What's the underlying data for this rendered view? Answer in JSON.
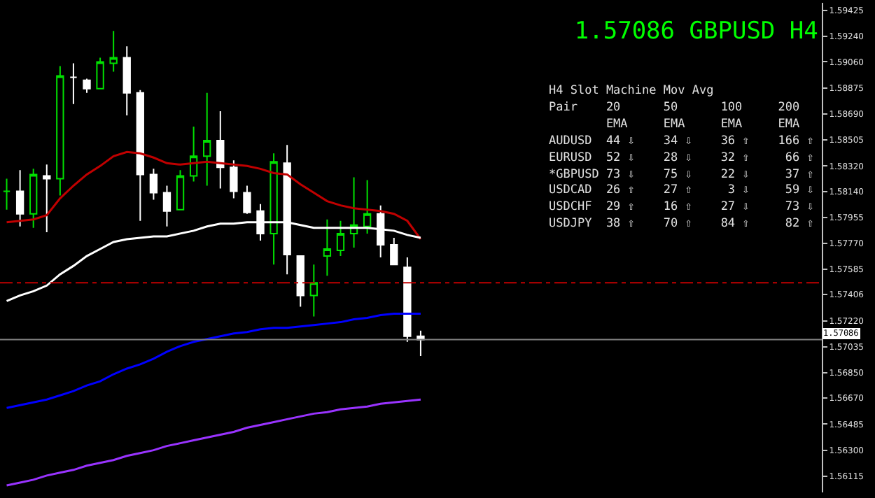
{
  "chart_data": {
    "type": "candlestick",
    "title": "1.57086 GBPUSD H4",
    "categories": [
      null,
      null,
      null,
      null,
      null,
      null,
      null,
      null,
      null,
      null,
      null,
      null,
      null,
      null,
      null,
      null,
      null,
      null,
      null,
      null,
      null,
      null,
      null,
      null,
      null,
      null,
      null,
      null,
      null,
      null,
      null,
      null
    ],
    "ohlc": [
      [
        1.5814,
        1.5823,
        1.5801,
        1.5814
      ],
      [
        1.5814,
        1.5829,
        1.5789,
        1.5798
      ],
      [
        1.5798,
        1.583,
        1.5788,
        1.5826
      ],
      [
        1.5825,
        1.5833,
        1.5785,
        1.5823
      ],
      [
        1.5823,
        1.5903,
        1.5811,
        1.5896
      ],
      [
        1.5895,
        1.5905,
        1.5876,
        1.5895
      ],
      [
        1.5893,
        1.5894,
        1.5884,
        1.5887
      ],
      [
        1.5887,
        1.5909,
        1.5887,
        1.5906
      ],
      [
        1.5905,
        1.5928,
        1.5899,
        1.5909
      ],
      [
        1.5909,
        1.5917,
        1.5868,
        1.5884
      ],
      [
        1.5884,
        1.5886,
        1.5793,
        1.5826
      ],
      [
        1.5826,
        1.583,
        1.5808,
        1.5813
      ],
      [
        1.5813,
        1.5818,
        1.5789,
        1.58
      ],
      [
        1.5801,
        1.5829,
        1.5801,
        1.5825
      ],
      [
        1.5825,
        1.586,
        1.5821,
        1.5839
      ],
      [
        1.5839,
        1.5884,
        1.5818,
        1.585
      ],
      [
        1.585,
        1.5871,
        1.5816,
        1.5831
      ],
      [
        1.5831,
        1.5836,
        1.5809,
        1.5814
      ],
      [
        1.5813,
        1.5818,
        1.5798,
        1.5799
      ],
      [
        1.58,
        1.5805,
        1.5779,
        1.5784
      ],
      [
        1.5784,
        1.5841,
        1.5762,
        1.5835
      ],
      [
        1.5834,
        1.5847,
        1.5755,
        1.5769
      ],
      [
        1.5768,
        1.5768,
        1.5732,
        1.574
      ],
      [
        1.574,
        1.5762,
        1.5725,
        1.5749
      ],
      [
        1.5768,
        1.5794,
        1.5754,
        1.5773
      ],
      [
        1.5772,
        1.5793,
        1.5768,
        1.5784
      ],
      [
        1.5784,
        1.5824,
        1.5774,
        1.579
      ],
      [
        1.5789,
        1.5822,
        1.5784,
        1.5798
      ],
      [
        1.5798,
        1.5804,
        1.5767,
        1.5776
      ],
      [
        1.5776,
        1.5781,
        1.5762,
        1.5762
      ],
      [
        1.576,
        1.5767,
        1.5707,
        1.5711
      ],
      [
        1.5711,
        1.5715,
        1.5697,
        1.57086
      ]
    ],
    "series": [
      {
        "type": "line",
        "color": "#c00000",
        "values": [
          1.5792,
          1.5793,
          1.5794,
          1.5797,
          1.5809,
          1.5818,
          1.5826,
          1.5832,
          1.5839,
          1.5842,
          1.5841,
          1.5838,
          1.5834,
          1.5833,
          1.5834,
          1.5835,
          1.5834,
          1.5833,
          1.5832,
          1.583,
          1.5827,
          1.5826,
          1.5819,
          1.5813,
          1.5807,
          1.5804,
          1.5802,
          1.5801,
          1.58,
          1.5798,
          1.5793,
          1.578
        ]
      },
      {
        "type": "line",
        "color": "#ffffff",
        "values": [
          1.5736,
          1.574,
          1.5743,
          1.5747,
          1.5755,
          1.5761,
          1.5768,
          1.5773,
          1.5778,
          1.578,
          1.5781,
          1.5782,
          1.5782,
          1.5784,
          1.5786,
          1.5789,
          1.5791,
          1.5791,
          1.5792,
          1.5792,
          1.5792,
          1.5792,
          1.579,
          1.5788,
          1.5788,
          1.5788,
          1.5788,
          1.5788,
          1.5787,
          1.5786,
          1.5783,
          1.5781
        ]
      },
      {
        "type": "line",
        "color": "#0000ff",
        "values": [
          1.566,
          1.5662,
          1.5664,
          1.5666,
          1.5669,
          1.5672,
          1.5676,
          1.5679,
          1.5684,
          1.5688,
          1.5691,
          1.5695,
          1.57,
          1.5704,
          1.5707,
          1.5709,
          1.5711,
          1.5713,
          1.5714,
          1.5716,
          1.5717,
          1.5717,
          1.5718,
          1.5719,
          1.572,
          1.5721,
          1.5723,
          1.5724,
          1.5726,
          1.5727,
          1.5727,
          1.5727
        ]
      },
      {
        "type": "line",
        "color": "#9933ff",
        "values": [
          1.5605,
          1.5607,
          1.5609,
          1.5612,
          1.5614,
          1.5616,
          1.5619,
          1.5621,
          1.5623,
          1.5626,
          1.5628,
          1.563,
          1.5633,
          1.5635,
          1.5637,
          1.5639,
          1.5641,
          1.5643,
          1.5646,
          1.5648,
          1.565,
          1.5652,
          1.5654,
          1.5656,
          1.5657,
          1.5659,
          1.566,
          1.5661,
          1.5663,
          1.5664,
          1.5665,
          1.5666
        ]
      }
    ],
    "ylim": [
      1.56,
      1.5948
    ],
    "yticks": [
      1.59425,
      {
        "value": 1.5924,
        "label": "1.59240"
      },
      {
        "value": 1.5906,
        "label": "1.59060"
      },
      1.58875,
      {
        "value": 1.5869,
        "label": "1.58690"
      },
      1.58505,
      {
        "value": 1.5832,
        "label": "1.58320"
      },
      {
        "value": 1.5814,
        "label": "1.58140"
      },
      1.57955,
      {
        "value": 1.5777,
        "label": "1.57770"
      },
      1.57585,
      1.57406,
      {
        "value": 1.5722,
        "label": "1.57220"
      },
      1.57035,
      {
        "value": 1.5685,
        "label": "1.56850"
      },
      {
        "value": 1.5667,
        "label": "1.56670"
      },
      1.56485,
      {
        "value": 1.563,
        "label": "1.56300"
      },
      1.56115
    ],
    "tick_labels": "y",
    "ref_lines": [
      {
        "axis": "y",
        "value": 1.5749,
        "color": "#c00000",
        "line_style": "dashed"
      },
      {
        "axis": "y",
        "value": 1.57086,
        "label": "1.57086",
        "color": "#808080"
      }
    ],
    "annotations": [
      "H4 Slot Machine Mov Avg",
      "Pair    20      50      100     200",
      "        EMA     EMA     EMA     EMA",
      "AUDUSD  44 ⇩    34 ⇩    36 ⇧    166 ⇧",
      "EURUSD  52 ⇩    28 ⇩    32 ⇧     66 ⇧",
      "*GBPUSD 73 ⇩    75 ⇩    22 ⇩     37 ⇧",
      "USDCAD  26 ⇧    27 ⇧     3 ⇩     59 ⇩",
      "USDCHF  29 ⇧    16 ⇧    27 ⇩     73 ⇩",
      "USDJPY  38 ⇧    70 ⇧    84 ⇧     82 ⇧"
    ],
    "grid": false
  }
}
